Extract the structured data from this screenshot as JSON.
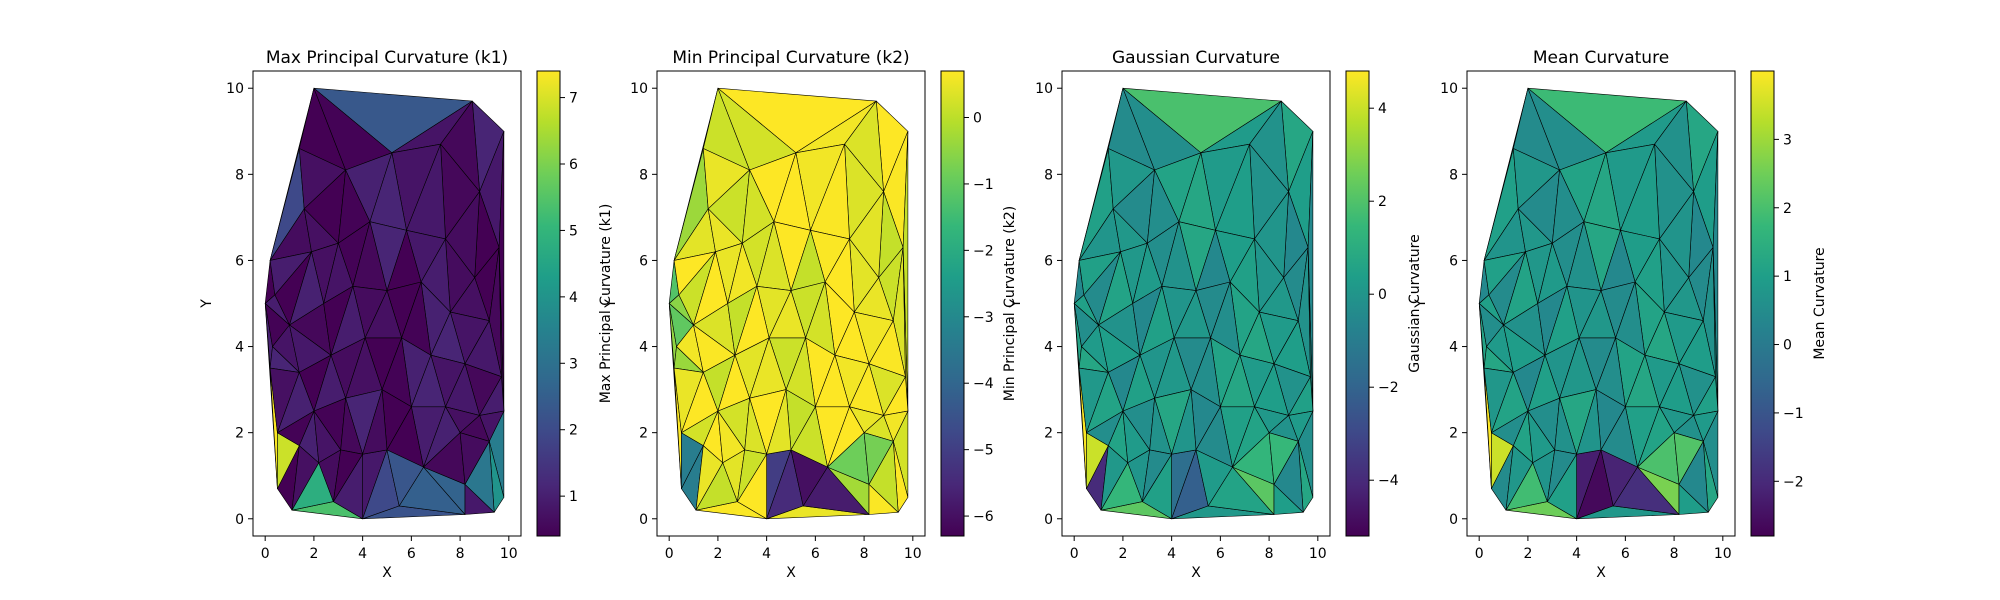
{
  "colormap": "viridis",
  "colors": {
    "viridis_stops": [
      "#440154",
      "#482878",
      "#3e4989",
      "#31688e",
      "#26828e",
      "#1f9e89",
      "#35b779",
      "#6ece58",
      "#b5de2b",
      "#fde725"
    ],
    "mesh_edge": "#000000",
    "axis": "#000000"
  },
  "chart_data": [
    {
      "type": "tripcolor",
      "title": "Max Principal Curvature (k1)",
      "xlabel": "X",
      "ylabel": "Y",
      "xlim": [
        -0.5,
        10.5
      ],
      "ylim": [
        -0.4,
        10.4
      ],
      "xticks": [
        0,
        2,
        4,
        6,
        8,
        10
      ],
      "yticks": [
        0,
        2,
        4,
        6,
        8,
        10
      ],
      "colorbar_label": "Max Principal Curvature (k1)",
      "clim": [
        0.4,
        7.4
      ],
      "colorbar_ticks": [
        1,
        2,
        3,
        4,
        5,
        6,
        7
      ],
      "regions": [
        {
          "pts": [
            [
              0.2,
              6
            ],
            [
              2,
              10
            ],
            [
              8.5,
              9.7
            ],
            [
              9.8,
              9
            ],
            [
              9.8,
              0.5
            ],
            [
              9.4,
              0.15
            ],
            [
              4,
              0
            ],
            [
              1.1,
              0.2
            ],
            [
              0.5,
              0.7
            ],
            [
              0.2,
              3.5
            ],
            [
              0,
              5
            ]
          ],
          "value": 0.7
        },
        {
          "pts": [
            [
              2,
              10
            ],
            [
              8.5,
              9.7
            ],
            [
              5.2,
              8.5
            ]
          ],
          "value": 2.0
        },
        {
          "pts": [
            [
              0.2,
              6
            ],
            [
              2,
              10
            ],
            [
              1.6,
              7.2
            ],
            [
              0.4,
              5.2
            ]
          ],
          "value": 1.7
        },
        {
          "pts": [
            [
              0,
              5
            ],
            [
              0.4,
              5.2
            ],
            [
              0.3,
              4
            ]
          ],
          "value": 3.2
        },
        {
          "pts": [
            [
              0.2,
              3.5
            ],
            [
              0.5,
              0.7
            ],
            [
              1.4,
              1.7
            ]
          ],
          "value": 7.2
        },
        {
          "pts": [
            [
              1.1,
              0.2
            ],
            [
              2.2,
              1.3
            ],
            [
              3.8,
              0.1
            ]
          ],
          "value": 5.2
        },
        {
          "pts": [
            [
              9.8,
              2.5
            ],
            [
              9.8,
              0.5
            ],
            [
              9.4,
              0.15
            ],
            [
              8.2,
              0.8
            ],
            [
              9.2,
              1.8
            ]
          ],
          "value": 3.6
        },
        {
          "pts": [
            [
              6.5,
              1.2
            ],
            [
              8.2,
              0.8
            ],
            [
              8,
              0.2
            ],
            [
              4,
              0
            ],
            [
              4.8,
              1.5
            ]
          ],
          "value": 2.2
        }
      ]
    },
    {
      "type": "tripcolor",
      "title": "Min Principal Curvature (k2)",
      "xlabel": "X",
      "ylabel": "Y",
      "xlim": [
        -0.5,
        10.5
      ],
      "ylim": [
        -0.4,
        10.4
      ],
      "xticks": [
        0,
        2,
        4,
        6,
        8,
        10
      ],
      "yticks": [
        0,
        2,
        4,
        6,
        8,
        10
      ],
      "colorbar_label": "Min Principal Curvature (k2)",
      "clim": [
        -6.3,
        0.7
      ],
      "colorbar_ticks": [
        0,
        -1,
        -2,
        -3,
        -4,
        -5,
        -6
      ],
      "regions": [
        {
          "pts": [
            [
              0.2,
              6
            ],
            [
              2,
              10
            ],
            [
              8.5,
              9.7
            ],
            [
              9.8,
              9
            ],
            [
              9.8,
              0.5
            ],
            [
              9.4,
              0.15
            ],
            [
              4,
              0
            ],
            [
              1.1,
              0.2
            ],
            [
              0.5,
              0.7
            ],
            [
              0.2,
              3.5
            ],
            [
              0,
              5
            ]
          ],
          "value": 0.5
        },
        {
          "pts": [
            [
              0.2,
              6
            ],
            [
              2,
              10
            ],
            [
              1,
              7
            ]
          ],
          "value": -0.6
        },
        {
          "pts": [
            [
              0,
              5
            ],
            [
              0.2,
              6
            ],
            [
              1,
              4.5
            ],
            [
              0.5,
              2
            ]
          ],
          "value": -0.8
        },
        {
          "pts": [
            [
              0.5,
              0.7
            ],
            [
              0.5,
              2
            ],
            [
              1.4,
              1.7
            ],
            [
              1.1,
              0.2
            ]
          ],
          "value": -3.0
        },
        {
          "pts": [
            [
              3.8,
              0.1
            ],
            [
              4,
              1.5
            ],
            [
              5,
              1.6
            ],
            [
              5.5,
              0.3
            ]
          ],
          "value": -5.2
        },
        {
          "pts": [
            [
              5,
              1.6
            ],
            [
              8.2,
              0.1
            ],
            [
              5.5,
              0.3
            ]
          ],
          "value": -6.1
        },
        {
          "pts": [
            [
              5,
              1.6
            ],
            [
              8,
              2
            ],
            [
              9.2,
              1.8
            ],
            [
              8.2,
              0.1
            ]
          ],
          "value": -0.7
        },
        {
          "pts": [
            [
              8.2,
              0.8
            ],
            [
              9.8,
              0.5
            ],
            [
              9.4,
              0.15
            ]
          ],
          "value": -1.5
        }
      ]
    },
    {
      "type": "tripcolor",
      "title": "Gaussian Curvature",
      "xlabel": "X",
      "ylabel": "Y",
      "xlim": [
        -0.5,
        10.5
      ],
      "ylim": [
        -0.4,
        10.4
      ],
      "xticks": [
        0,
        2,
        4,
        6,
        8,
        10
      ],
      "yticks": [
        0,
        2,
        4,
        6,
        8,
        10
      ],
      "colorbar_label": "Gaussian Curvature",
      "clim": [
        -5.2,
        4.8
      ],
      "colorbar_ticks": [
        4,
        2,
        0,
        -2,
        -4
      ],
      "regions": [
        {
          "pts": [
            [
              0.2,
              6
            ],
            [
              2,
              10
            ],
            [
              8.5,
              9.7
            ],
            [
              9.8,
              9
            ],
            [
              9.8,
              0.5
            ],
            [
              9.4,
              0.15
            ],
            [
              4,
              0
            ],
            [
              1.1,
              0.2
            ],
            [
              0.5,
              0.7
            ],
            [
              0.2,
              3.5
            ],
            [
              0,
              5
            ]
          ],
          "value": 0.1
        },
        {
          "pts": [
            [
              2,
              10
            ],
            [
              8.5,
              9.7
            ],
            [
              5.2,
              8.5
            ]
          ],
          "value": 1.4
        },
        {
          "pts": [
            [
              0.2,
              3.5
            ],
            [
              0.5,
              0.7
            ],
            [
              1.4,
              1.7
            ]
          ],
          "value": 4.5
        },
        {
          "pts": [
            [
              1.1,
              0.2
            ],
            [
              2.2,
              1.3
            ],
            [
              3.8,
              0.1
            ]
          ],
          "value": 2.0
        },
        {
          "pts": [
            [
              0.5,
              0.7
            ],
            [
              1.1,
              0.2
            ],
            [
              1.4,
              1.7
            ]
          ],
          "value": -3.5
        },
        {
          "pts": [
            [
              3.8,
              0.1
            ],
            [
              4,
              1.5
            ],
            [
              5.5,
              0.3
            ]
          ],
          "value": -1.8
        },
        {
          "pts": [
            [
              5,
              1.6
            ],
            [
              8,
              2
            ],
            [
              9.2,
              1.8
            ],
            [
              8.2,
              0.1
            ]
          ],
          "value": 1.6
        }
      ]
    },
    {
      "type": "tripcolor",
      "title": "Mean Curvature",
      "xlabel": "X",
      "ylabel": "Y",
      "xlim": [
        -0.5,
        10.5
      ],
      "ylim": [
        -0.4,
        10.4
      ],
      "xticks": [
        0,
        2,
        4,
        6,
        8,
        10
      ],
      "yticks": [
        0,
        2,
        4,
        6,
        8,
        10
      ],
      "colorbar_label": "Mean Curvature",
      "clim": [
        -2.8,
        4
      ],
      "colorbar_ticks": [
        3,
        2,
        1,
        0,
        -1,
        -2
      ],
      "regions": [
        {
          "pts": [
            [
              0.2,
              6
            ],
            [
              2,
              10
            ],
            [
              8.5,
              9.7
            ],
            [
              9.8,
              9
            ],
            [
              9.8,
              0.5
            ],
            [
              9.4,
              0.15
            ],
            [
              4,
              0
            ],
            [
              1.1,
              0.2
            ],
            [
              0.5,
              0.7
            ],
            [
              0.2,
              3.5
            ],
            [
              0,
              5
            ]
          ],
          "value": 0.8
        },
        {
          "pts": [
            [
              2,
              10
            ],
            [
              8.5,
              9.7
            ],
            [
              5.2,
              8.5
            ]
          ],
          "value": 1.5
        },
        {
          "pts": [
            [
              0.2,
              3.5
            ],
            [
              0.5,
              0.7
            ],
            [
              1.4,
              1.7
            ]
          ],
          "value": 3.8
        },
        {
          "pts": [
            [
              1.1,
              0.2
            ],
            [
              2.2,
              1.3
            ],
            [
              3.8,
              0.1
            ]
          ],
          "value": 2.3
        },
        {
          "pts": [
            [
              3.8,
              0.1
            ],
            [
              4,
              1.5
            ],
            [
              5.5,
              0.3
            ]
          ],
          "value": -2.4
        },
        {
          "pts": [
            [
              5,
              1.6
            ],
            [
              8.2,
              0.1
            ],
            [
              5.5,
              0.3
            ]
          ],
          "value": -2.2
        },
        {
          "pts": [
            [
              5,
              1.6
            ],
            [
              8,
              2
            ],
            [
              9.2,
              1.8
            ],
            [
              8.2,
              0.1
            ]
          ],
          "value": 2.2
        }
      ]
    }
  ]
}
